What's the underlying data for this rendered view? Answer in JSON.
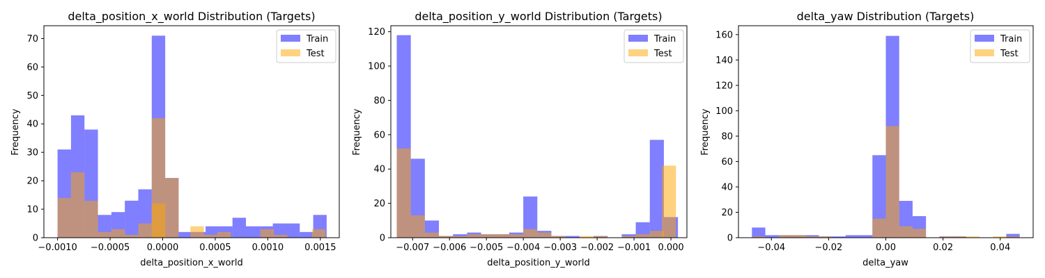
{
  "colors": {
    "train": "#0000ff",
    "test": "#ffa500",
    "axes": "#000000",
    "background": "#ffffff"
  },
  "chart_data": [
    {
      "type": "histogram",
      "title": "delta_position_x_world Distribution (Targets)",
      "xlabel": "delta_position_x_world",
      "ylabel": "Frequency",
      "xlim": [
        -0.00113,
        0.00168
      ],
      "ylim": [
        0,
        74.5
      ],
      "xticks": [
        {
          "value": -0.001,
          "label": "−0.0010"
        },
        {
          "value": -0.0005,
          "label": "−0.0005"
        },
        {
          "value": 0,
          "label": "0.0000"
        },
        {
          "value": 0.0005,
          "label": "0.0005"
        },
        {
          "value": 0.001,
          "label": "0.0010"
        },
        {
          "value": 0.0015,
          "label": "0.0015"
        }
      ],
      "yticks": [
        0,
        10,
        20,
        30,
        40,
        50,
        60,
        70
      ],
      "legend": {
        "position": "top-right",
        "entries": [
          "Train",
          "Test"
        ]
      },
      "series": [
        {
          "name": "Train",
          "bin_start": -0.001,
          "bin_width": 0.000128,
          "values": [
            31,
            43,
            38,
            8,
            9,
            13,
            17,
            71,
            21,
            2,
            2,
            4,
            4,
            7,
            4,
            4,
            5,
            5,
            2,
            8
          ]
        },
        {
          "name": "Test",
          "bin_start": -0.001,
          "bin_width": 0.000128,
          "values": [
            14,
            23,
            13,
            2,
            3,
            1,
            5,
            12,
            21,
            0,
            0,
            0,
            0,
            0,
            0,
            0,
            0,
            0,
            0,
            0
          ],
          "extra_bars": [
            {
              "start": -0.000104,
              "width": 0.000128,
              "value": 42
            },
            {
              "start": 0.000264,
              "width": 0.000128,
              "value": 4
            },
            {
              "start": 0.000392,
              "width": 0.000128,
              "value": 1
            },
            {
              "start": 0.00052,
              "width": 0.000128,
              "value": 2
            },
            {
              "start": 0.00093,
              "width": 0.000128,
              "value": 3
            },
            {
              "start": 0.00106,
              "width": 0.000128,
              "value": 1
            },
            {
              "start": 0.00142,
              "width": 0.000128,
              "value": 3
            }
          ]
        }
      ]
    },
    {
      "type": "histogram",
      "title": "delta_position_y_world Distribution (Targets)",
      "xlabel": "delta_position_y_world",
      "ylabel": "Frequency",
      "xlim": [
        -0.00759,
        0.000433
      ],
      "ylim": [
        0,
        123.5
      ],
      "xticks": [
        {
          "value": -0.007,
          "label": "−0.007"
        },
        {
          "value": -0.006,
          "label": "−0.006"
        },
        {
          "value": -0.005,
          "label": "−0.005"
        },
        {
          "value": -0.004,
          "label": "−0.004"
        },
        {
          "value": -0.003,
          "label": "−0.003"
        },
        {
          "value": -0.002,
          "label": "−0.002"
        },
        {
          "value": -0.001,
          "label": "−0.001"
        },
        {
          "value": 0,
          "label": "0.000"
        }
      ],
      "yticks": [
        0,
        20,
        40,
        60,
        80,
        100,
        120
      ],
      "legend": {
        "position": "top-right",
        "entries": [
          "Train",
          "Test"
        ]
      },
      "series": [
        {
          "name": "Train",
          "bin_start": -0.00743,
          "bin_width": 0.000381,
          "values": [
            118,
            46,
            10,
            1,
            2,
            3,
            2,
            2,
            3,
            24,
            4,
            1,
            1,
            0,
            1,
            0,
            2,
            9,
            57,
            12
          ]
        },
        {
          "name": "Test",
          "bin_start": -0.00743,
          "bin_width": 0.000381,
          "values": [
            52,
            13,
            3,
            1,
            1,
            2,
            2,
            2,
            2,
            5,
            3,
            1,
            0,
            1,
            1,
            0,
            1,
            2,
            4,
            0
          ],
          "extra_bars": [
            {
              "start": -0.000245,
              "width": 0.000381,
              "value": 42
            }
          ]
        }
      ]
    },
    {
      "type": "histogram",
      "title": "delta_yaw Distribution (Targets)",
      "xlabel": "delta_yaw",
      "ylabel": "Frequency",
      "xlim": [
        -0.0515,
        0.0515
      ],
      "ylim": [
        0,
        167
      ],
      "xticks": [
        {
          "value": -0.04,
          "label": "−0.04"
        },
        {
          "value": -0.02,
          "label": "−0.02"
        },
        {
          "value": 0,
          "label": "0.00"
        },
        {
          "value": 0.02,
          "label": "0.02"
        },
        {
          "value": 0.04,
          "label": "0.04"
        }
      ],
      "yticks": [
        0,
        20,
        40,
        60,
        80,
        100,
        120,
        140,
        160
      ],
      "legend": {
        "position": "top-right",
        "entries": [
          "Train",
          "Test"
        ]
      },
      "series": [
        {
          "name": "Train",
          "bin_start": -0.0468,
          "bin_width": 0.00468,
          "values": [
            8,
            2,
            2,
            2,
            2,
            1,
            1,
            2,
            2,
            65,
            159,
            29,
            17,
            0,
            1,
            1,
            0,
            0,
            0,
            3
          ]
        },
        {
          "name": "Test",
          "bin_start": -0.0468,
          "bin_width": 0.00468,
          "values": [
            1,
            0,
            2,
            2,
            1,
            1,
            0,
            0,
            0,
            15,
            88,
            9,
            7,
            0,
            1,
            1,
            1,
            0,
            1,
            1
          ]
        }
      ]
    }
  ]
}
